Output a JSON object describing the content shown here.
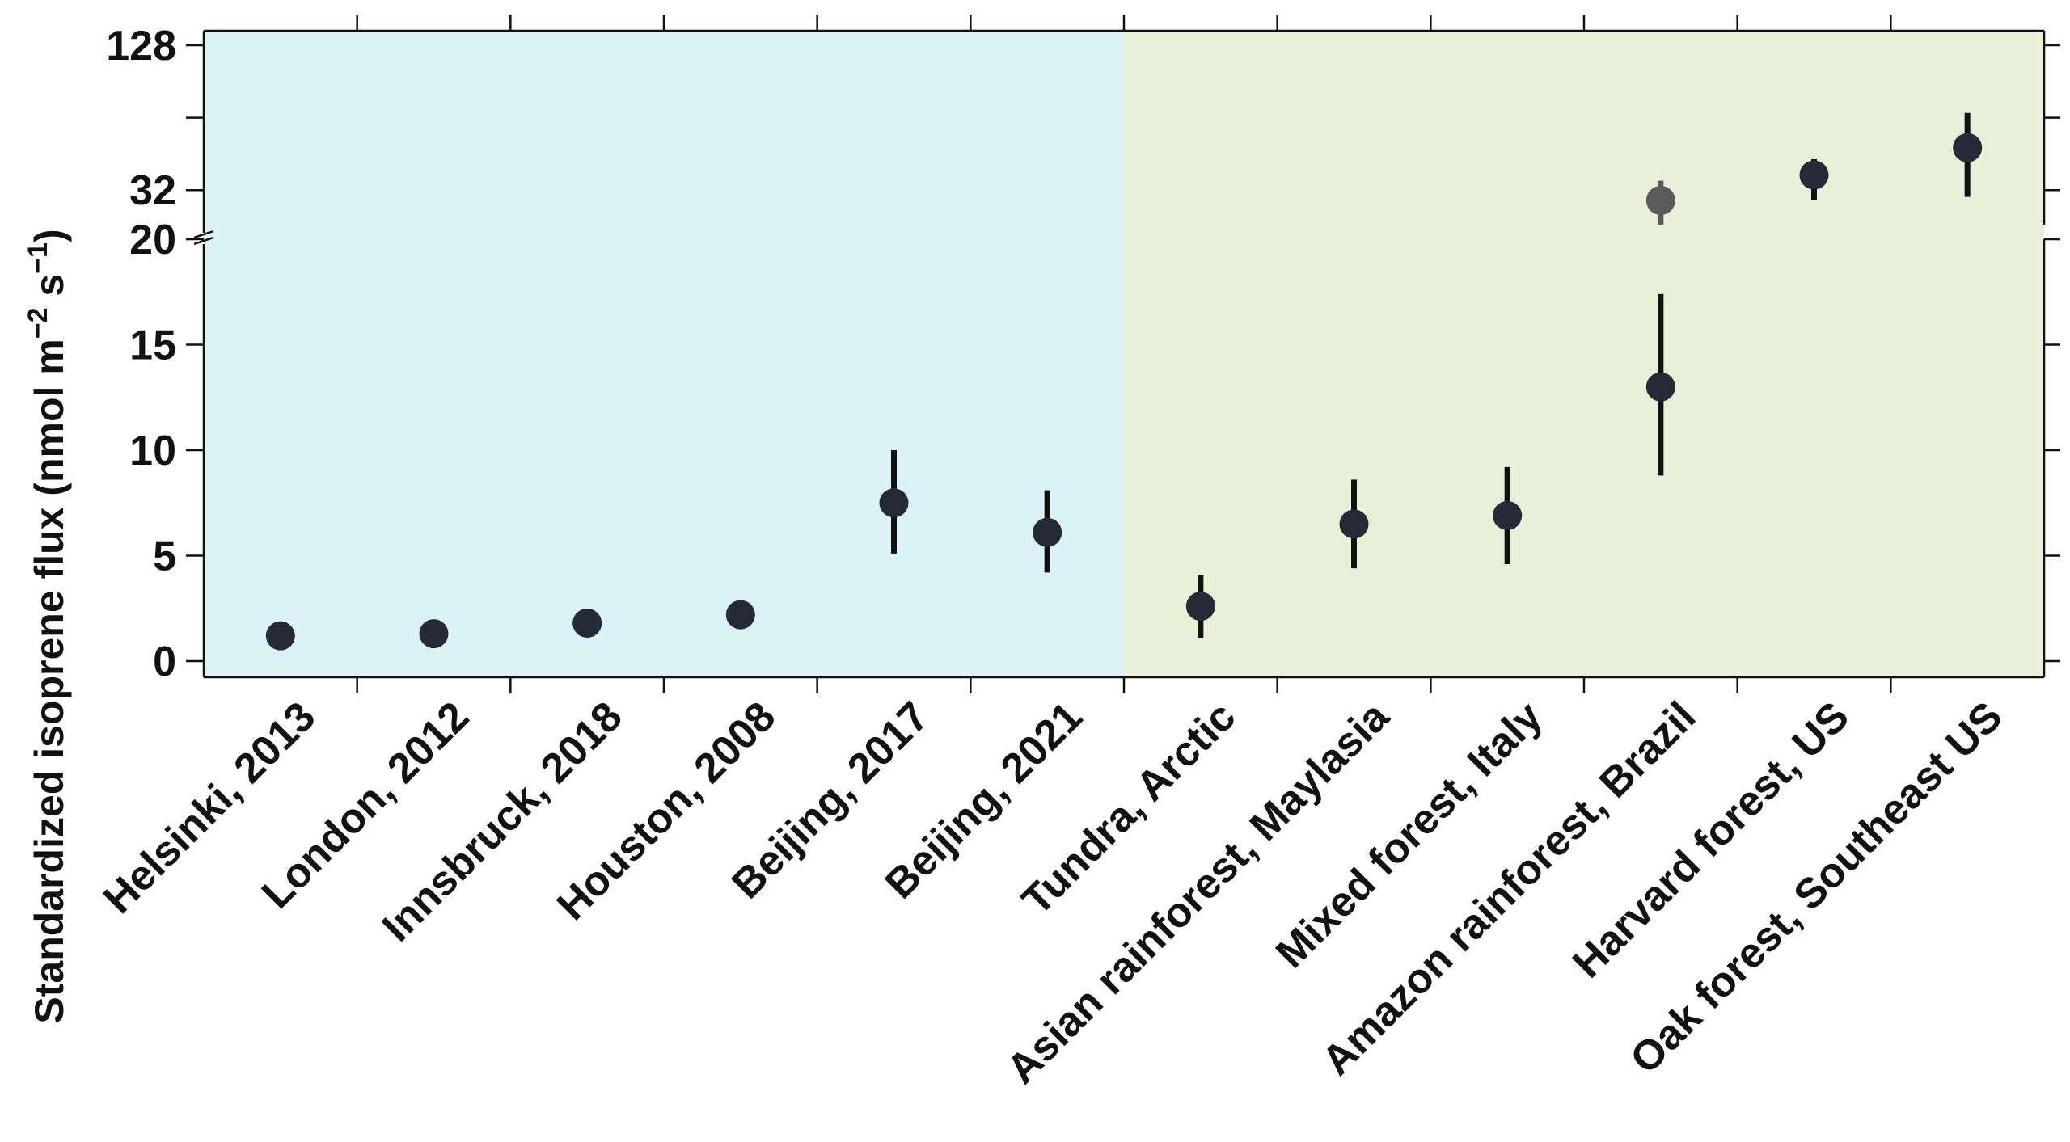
{
  "chart_data": {
    "type": "scatter",
    "ylabel": {
      "main": "Standardized isoprene flux (nmol m",
      "exp1": "−2",
      "mid": " s",
      "exp2": "−1",
      "end": ")"
    },
    "categories": [
      "Helsinki, 2013",
      "London, 2012",
      "Innsbruck, 2018",
      "Houston, 2008",
      "Beijing, 2017",
      "Beijing, 2021",
      "Tundra, Arctic",
      "Asian rainforest, Maylasia",
      "Mixed forest, Italy",
      "Amazon rainforest, Brazil",
      "Harvard forest, US",
      "Oak forest, Southeast US"
    ],
    "regions": [
      {
        "from": 0,
        "to": 5,
        "color": "#dbf3f7"
      },
      {
        "from": 6,
        "to": 11,
        "color": "#e8f0d8"
      }
    ],
    "lower_axis": {
      "range": [
        -0.5,
        20
      ],
      "ticks": [
        0,
        5,
        10,
        15,
        20
      ],
      "scale": "linear"
    },
    "upper_axis": {
      "range": [
        20,
        128
      ],
      "ticks": [
        32,
        128
      ],
      "minor_ticks": [
        64
      ],
      "scale": "log2"
    },
    "points": [
      {
        "category": "Helsinki, 2013",
        "value": 1.2,
        "err_low": 1.2,
        "err_high": 1.2,
        "color": "#252a36",
        "err_color": "#111111"
      },
      {
        "category": "London, 2012",
        "value": 1.3,
        "err_low": 1.3,
        "err_high": 1.3,
        "color": "#252a36",
        "err_color": "#111111"
      },
      {
        "category": "Innsbruck, 2018",
        "value": 1.8,
        "err_low": 1.8,
        "err_high": 1.8,
        "color": "#252a36",
        "err_color": "#111111"
      },
      {
        "category": "Houston, 2008",
        "value": 2.2,
        "err_low": 1.9,
        "err_high": 2.5,
        "color": "#252a36",
        "err_color": "#111111"
      },
      {
        "category": "Beijing, 2017",
        "value": 7.5,
        "err_low": 5.1,
        "err_high": 10.0,
        "color": "#252a36",
        "err_color": "#111111"
      },
      {
        "category": "Beijing, 2021",
        "value": 6.1,
        "err_low": 4.2,
        "err_high": 8.1,
        "color": "#252a36",
        "err_color": "#111111"
      },
      {
        "category": "Tundra, Arctic",
        "value": 2.6,
        "err_low": 1.1,
        "err_high": 4.1,
        "color": "#252a36",
        "err_color": "#111111"
      },
      {
        "category": "Asian rainforest, Maylasia",
        "value": 6.5,
        "err_low": 4.4,
        "err_high": 8.6,
        "color": "#252a36",
        "err_color": "#111111"
      },
      {
        "category": "Mixed forest, Italy",
        "value": 6.9,
        "err_low": 4.6,
        "err_high": 9.2,
        "color": "#252a36",
        "err_color": "#111111"
      },
      {
        "category": "Amazon rainforest, Brazil",
        "value": 13.0,
        "err_low": 8.8,
        "err_high": 17.4,
        "color": "#252a36",
        "err_color": "#111111"
      },
      {
        "category": "Amazon rainforest, Brazil",
        "value": 29,
        "err_low": 23,
        "err_high": 35,
        "color": "#5a5a5a",
        "err_color": "#5a5a5a"
      },
      {
        "category": "Harvard forest, US",
        "value": 37,
        "err_low": 29,
        "err_high": 43,
        "color": "#252a36",
        "err_color": "#111111"
      },
      {
        "category": "Oak forest, Southeast US",
        "value": 48,
        "err_low": 30,
        "err_high": 67,
        "color": "#252a36",
        "err_color": "#111111"
      }
    ],
    "grid": false
  }
}
